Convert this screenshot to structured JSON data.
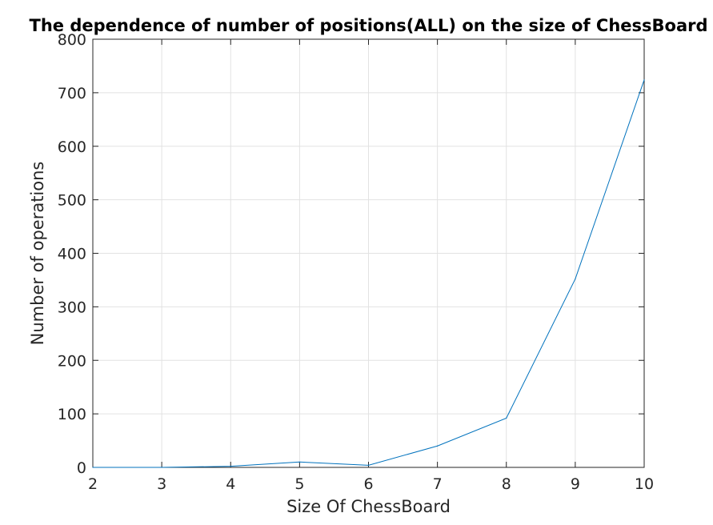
{
  "chart_data": {
    "type": "line",
    "title": "The dependence of number of positions(ALL) on the size of ChessBoard",
    "xlabel": "Size Of ChessBoard",
    "ylabel": "Number of operations",
    "xlim": [
      2,
      10
    ],
    "ylim": [
      0,
      800
    ],
    "xticks": [
      2,
      3,
      4,
      5,
      6,
      7,
      8,
      9,
      10
    ],
    "yticks": [
      0,
      100,
      200,
      300,
      400,
      500,
      600,
      700,
      800
    ],
    "grid": true,
    "legend": "none",
    "series": [
      {
        "color": "#0072bd",
        "x": [
          2,
          3,
          4,
          5,
          6,
          7,
          8,
          9,
          10
        ],
        "y": [
          0,
          0,
          2,
          10,
          4,
          40,
          92,
          352,
          724
        ]
      }
    ]
  }
}
